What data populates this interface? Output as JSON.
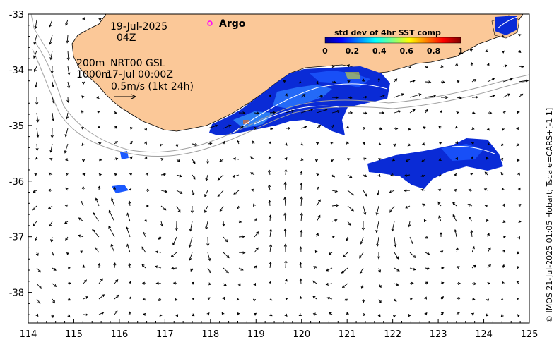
{
  "map": {
    "date": "19-Jul-2025",
    "time": "04Z",
    "depth_shallow": "200m",
    "depth_deep": "1000m",
    "product": "NRT00 GSL",
    "product_time": "17-Jul 00:00Z",
    "velocity_scale": "0.5m/s (1kt 24h)",
    "argo_label": "Argo",
    "colorbar": {
      "title": "std dev of 4hr SST comp",
      "ticks": [
        "0",
        "0.2",
        "0.4",
        "0.6",
        "0.8",
        "1"
      ],
      "range": [
        0,
        1
      ]
    },
    "credit": "© IMOS 21-Jul-2025 01:05 Hobart; Tscale=CARS+[-1 1]",
    "lon_ticks": [
      114,
      115,
      116,
      117,
      118,
      119,
      120,
      121,
      122,
      123,
      124,
      125
    ],
    "lat_ticks": [
      -33,
      -34,
      -35,
      -36,
      -37,
      -38
    ],
    "lon_range": [
      114,
      125
    ],
    "lat_range": [
      -38.55,
      -33
    ],
    "colors": {
      "land": "#fbc898",
      "arrow": "#000000",
      "shelf_contour": "#a0a0a0",
      "argo_marker": "#ff00ff"
    }
  }
}
